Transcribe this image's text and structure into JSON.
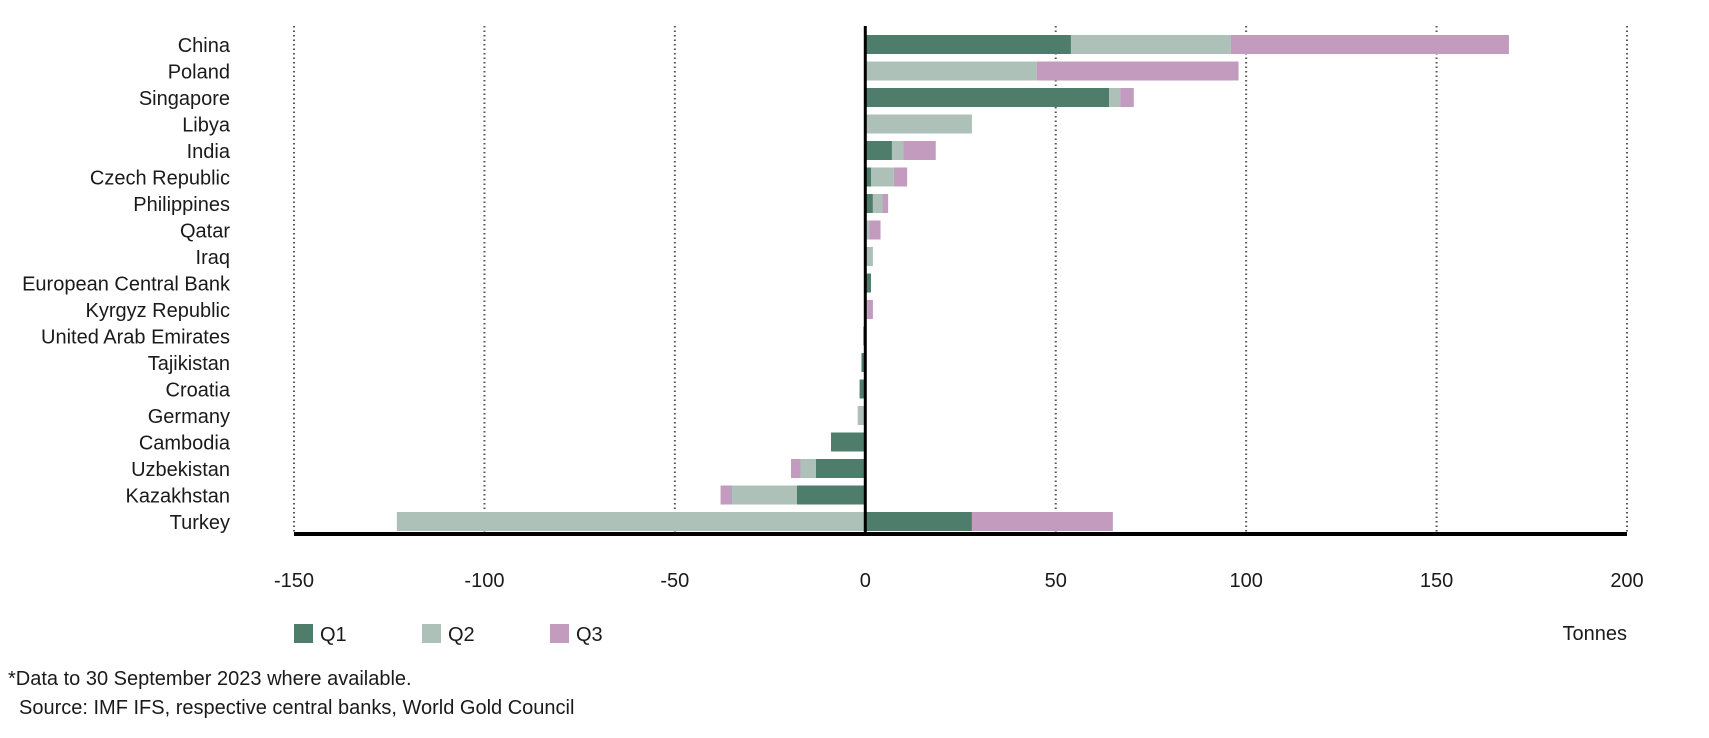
{
  "chart_data": {
    "type": "bar",
    "orientation": "horizontal",
    "stacked": true,
    "title": "",
    "xlabel": "Tonnes",
    "ylabel": "",
    "xlim": [
      -150,
      200
    ],
    "xticks": [
      -150,
      -100,
      -50,
      0,
      50,
      100,
      150,
      200
    ],
    "grid": "vertical-dotted",
    "legend_position": "bottom-left",
    "categories": [
      "China",
      "Poland",
      "Singapore",
      "Libya",
      "India",
      "Czech Republic",
      "Philippines",
      "Qatar",
      "Iraq",
      "European Central Bank",
      "Kyrgyz Republic",
      "United Arab Emirates",
      "Tajikistan",
      "Croatia",
      "Germany",
      "Cambodia",
      "Uzbekistan",
      "Kazakhstan",
      "Turkey"
    ],
    "series": [
      {
        "name": "Q1",
        "color": "#4e7d6c",
        "values": [
          54,
          0,
          64,
          0,
          7,
          1.5,
          2,
          0,
          0,
          1.5,
          0,
          -0.5,
          -1,
          -1.5,
          0,
          -9,
          -13,
          -18,
          28
        ]
      },
      {
        "name": "Q2",
        "color": "#adc1b8",
        "values": [
          42,
          45,
          3,
          28,
          3,
          6,
          2.5,
          1,
          2,
          0,
          0.5,
          0,
          0,
          0,
          -2,
          0,
          -4,
          -17,
          -123
        ]
      },
      {
        "name": "Q3",
        "color": "#c29bbe",
        "values": [
          73,
          53,
          3.5,
          0,
          8.5,
          3.5,
          1.5,
          3,
          0,
          0,
          1.5,
          0,
          0,
          0,
          0,
          0,
          -2.5,
          -3,
          37
        ]
      }
    ]
  },
  "footnote": "*Data to 30 September 2023 where available.",
  "source": "Source: IMF IFS, respective central banks, World Gold Council"
}
